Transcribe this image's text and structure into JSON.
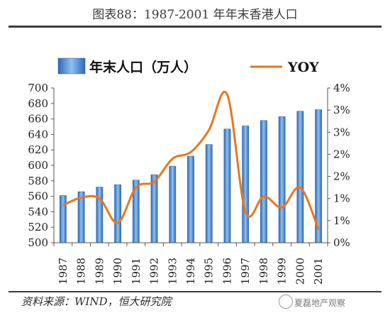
{
  "title": "图表88：1987-2001 年年末香港人口",
  "source": "资料来源：WIND，恒大研究院",
  "watermark": "夏磊地产观察",
  "chart_data": {
    "type": "bar",
    "categories": [
      "1987",
      "1988",
      "1989",
      "1990",
      "1991",
      "1992",
      "1993",
      "1994",
      "1995",
      "1996",
      "1997",
      "1998",
      "1999",
      "2000",
      "2001"
    ],
    "series": [
      {
        "name": "年末人口（万人）",
        "type": "bar",
        "axis": "left",
        "color": "#3f7fc5",
        "values": [
          561,
          566,
          572,
          575,
          581,
          588,
          599,
          612,
          627,
          647,
          651,
          658,
          663,
          670,
          672
        ]
      },
      {
        "name": "YOY",
        "type": "line",
        "axis": "right",
        "color": "#e8771e",
        "values": [
          0.85,
          1.02,
          1.0,
          0.45,
          1.25,
          1.38,
          1.9,
          2.05,
          2.55,
          3.35,
          0.7,
          1.05,
          0.8,
          1.25,
          0.3
        ]
      }
    ],
    "ylim_left": [
      500,
      700
    ],
    "yticks_left": [
      "500",
      "520",
      "540",
      "560",
      "580",
      "600",
      "620",
      "640",
      "660",
      "680",
      "700"
    ],
    "ylim_right": [
      0,
      3.5
    ],
    "yticks_right": [
      "0%",
      "1%",
      "1%",
      "2%",
      "2%",
      "3%",
      "3%",
      "4%"
    ],
    "legend_position": "top"
  }
}
